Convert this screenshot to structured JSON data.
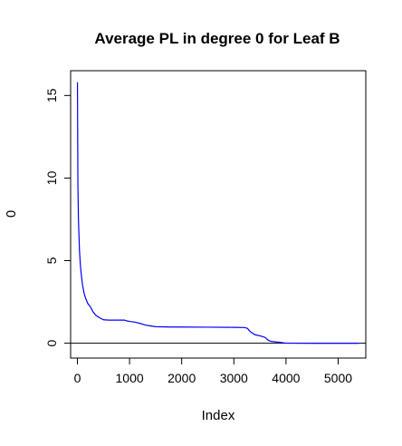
{
  "chart_data": {
    "type": "line",
    "title": "Average PL in degree 0 for Leaf B",
    "xlabel": "Index",
    "ylabel": "0",
    "xlim": [
      -130,
      5530
    ],
    "ylim": [
      -0.9,
      16.5
    ],
    "xticks": [
      0,
      1000,
      2000,
      3000,
      4000,
      5000
    ],
    "xtick_labels": [
      "0",
      "1000",
      "2000",
      "3000",
      "4000",
      "5000"
    ],
    "yticks": [
      0,
      5,
      10,
      15
    ],
    "ytick_labels": [
      "0",
      "5",
      "10",
      "15"
    ],
    "grid": false,
    "hline": {
      "y": 0,
      "color": "#000000"
    },
    "series": [
      {
        "color": "#0000ff",
        "x": [
          1,
          10,
          20,
          40,
          60,
          80,
          100,
          130,
          160,
          200,
          250,
          300,
          350,
          420,
          500,
          600,
          700,
          800,
          900,
          950,
          1000,
          1100,
          1200,
          1300,
          1400,
          1500,
          1800,
          2000,
          2500,
          3000,
          3200,
          3260,
          3300,
          3350,
          3400,
          3450,
          3500,
          3550,
          3600,
          3650,
          3700,
          3800,
          3900,
          3950,
          4000,
          4500,
          5000,
          5400
        ],
        "y": [
          15.8,
          9.5,
          7.5,
          5.6,
          4.6,
          4.0,
          3.5,
          3.0,
          2.7,
          2.4,
          2.2,
          1.9,
          1.7,
          1.55,
          1.42,
          1.4,
          1.4,
          1.4,
          1.4,
          1.35,
          1.32,
          1.28,
          1.2,
          1.1,
          1.05,
          1.0,
          0.98,
          0.98,
          0.97,
          0.96,
          0.95,
          0.9,
          0.75,
          0.62,
          0.52,
          0.48,
          0.45,
          0.4,
          0.35,
          0.2,
          0.12,
          0.08,
          0.05,
          0.02,
          0.01,
          0.0,
          0.0,
          0.0
        ]
      }
    ]
  }
}
